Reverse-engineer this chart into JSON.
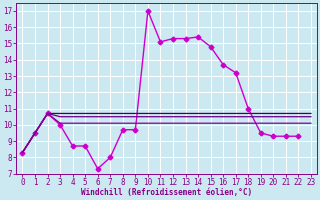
{
  "xlabel": "Windchill (Refroidissement éolien,°C)",
  "background_color": "#cce8f0",
  "grid_color": "#ffffff",
  "xlim": [
    -0.5,
    23.5
  ],
  "ylim": [
    7,
    17.5
  ],
  "xticks": [
    0,
    1,
    2,
    3,
    4,
    5,
    6,
    7,
    8,
    9,
    10,
    11,
    12,
    13,
    14,
    15,
    16,
    17,
    18,
    19,
    20,
    21,
    22,
    23
  ],
  "yticks": [
    7,
    8,
    9,
    10,
    11,
    12,
    13,
    14,
    15,
    16,
    17
  ],
  "series": [
    {
      "x": [
        0,
        1,
        2,
        3,
        4,
        5,
        6,
        7,
        8,
        9,
        10,
        11,
        12,
        13,
        14,
        15,
        16,
        17,
        18,
        19,
        20,
        21,
        22
      ],
      "y": [
        8.3,
        9.5,
        10.7,
        10.0,
        8.7,
        8.7,
        7.3,
        8.0,
        9.7,
        9.7,
        17.0,
        15.1,
        15.3,
        15.3,
        15.4,
        14.8,
        13.7,
        13.2,
        11.0,
        9.5,
        9.3,
        9.3,
        9.3
      ],
      "color": "#cc00cc",
      "marker": "D",
      "markersize": 2.5,
      "linewidth": 1.0,
      "linestyle": "-"
    },
    {
      "x": [
        0,
        2,
        3,
        23
      ],
      "y": [
        8.3,
        10.7,
        10.7,
        10.7
      ],
      "color": "#440066",
      "marker": null,
      "markersize": 0,
      "linewidth": 0.9,
      "linestyle": "-"
    },
    {
      "x": [
        0,
        2,
        3,
        23
      ],
      "y": [
        8.3,
        10.7,
        10.5,
        10.5
      ],
      "color": "#660088",
      "marker": null,
      "markersize": 0,
      "linewidth": 0.9,
      "linestyle": "-"
    },
    {
      "x": [
        0,
        2,
        3,
        23
      ],
      "y": [
        8.3,
        10.7,
        10.1,
        10.1
      ],
      "color": "#880099",
      "marker": null,
      "markersize": 0,
      "linewidth": 0.9,
      "linestyle": "-"
    }
  ]
}
